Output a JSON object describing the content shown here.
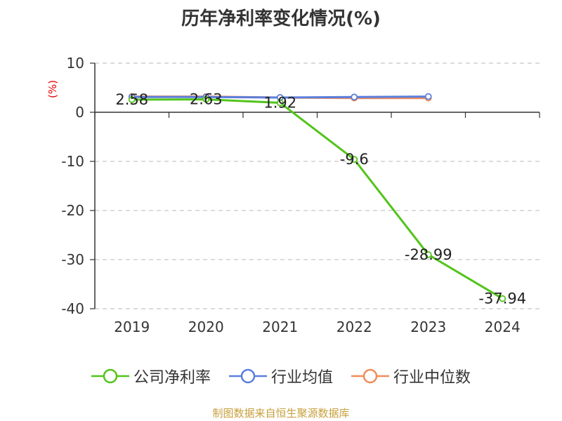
{
  "chart_data": {
    "type": "line",
    "title": "历年净利率变化情况(%)",
    "y_unit": "(%)",
    "categories": [
      "2019",
      "2020",
      "2021",
      "2022",
      "2023",
      "2024"
    ],
    "ylim": [
      -40,
      10
    ],
    "yticks": [
      10,
      0,
      -10,
      -20,
      -30,
      -40
    ],
    "grid": true,
    "legend_position": "bottom",
    "series": [
      {
        "name": "公司净利率",
        "color": "#52c41a",
        "values": [
          2.58,
          2.63,
          1.92,
          -9.6,
          -28.99,
          -37.94
        ],
        "labels": [
          "2.58",
          "2.63",
          "1.92",
          "-9.6",
          "-28.99",
          "-37.94"
        ]
      },
      {
        "name": "行业均值",
        "color": "#5b7fdc",
        "values": [
          3.1,
          3.1,
          3.0,
          3.1,
          3.2,
          null
        ]
      },
      {
        "name": "行业中位数",
        "color": "#f28c5a",
        "values": [
          3.2,
          3.2,
          3.0,
          2.9,
          2.9,
          null
        ]
      }
    ]
  },
  "source": "制图数据来自恒生聚源数据库"
}
